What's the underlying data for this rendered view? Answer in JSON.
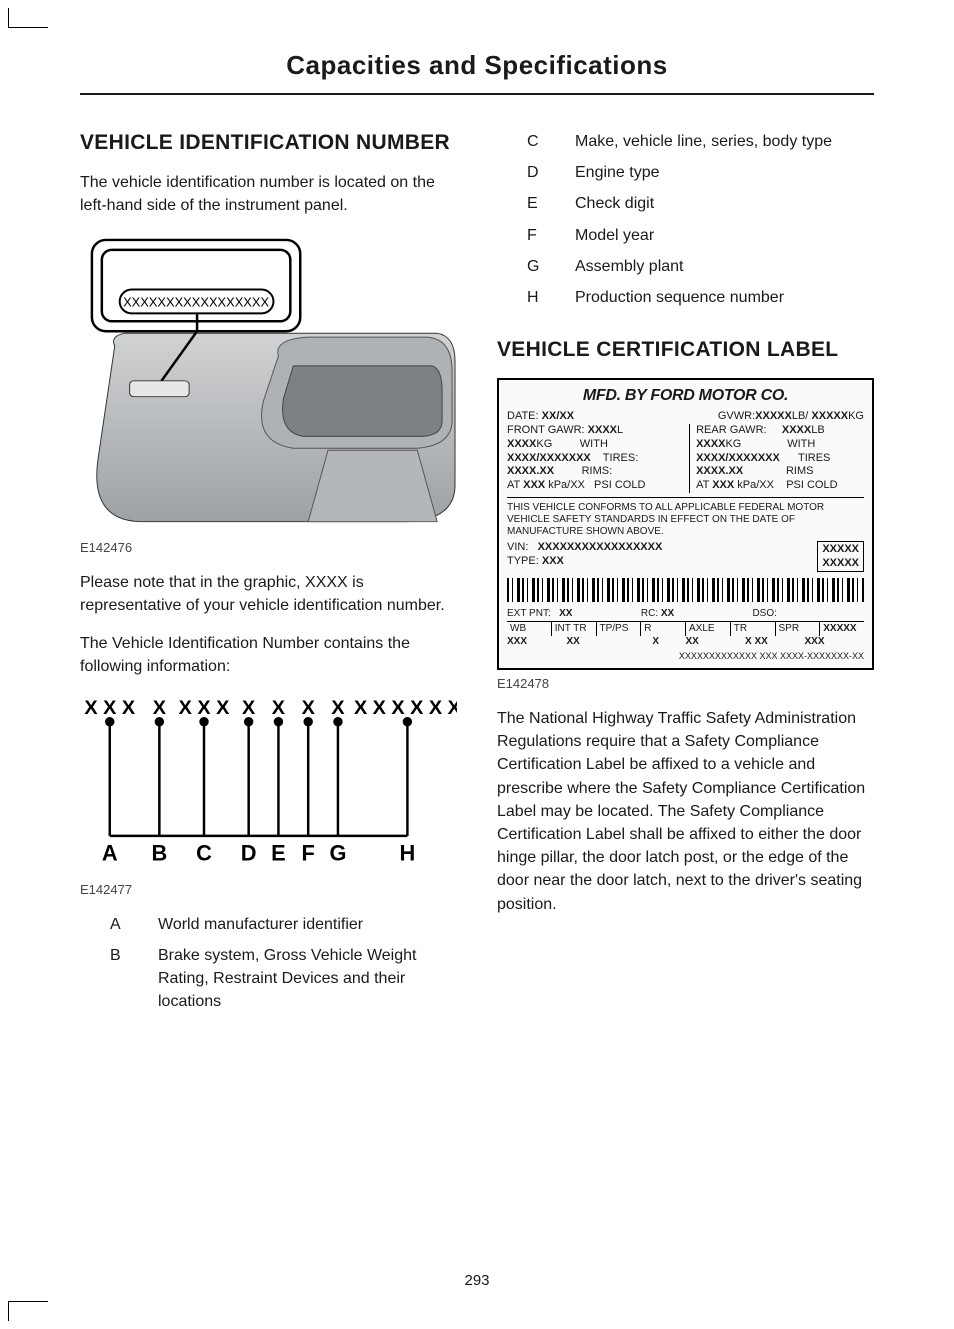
{
  "header": "Capacities and Specifications",
  "page_number": "293",
  "left": {
    "heading": "VEHICLE IDENTIFICATION NUMBER",
    "intro": "The vehicle identification number is located on the left-hand side of the instrument panel.",
    "fig1_caption": "E142476",
    "fig1_vin_placeholder": "XXXXXXXXXXXXXXXXX",
    "note": "Please note that in the graphic, XXXX is representative of your vehicle identification number.",
    "contains": "The Vehicle Identification Number contains the following information:",
    "fig2_caption": "E142477",
    "breakout": {
      "groups": [
        "X X X",
        "X",
        "X X X",
        "X",
        "X",
        "X",
        "X",
        "X X X X X X"
      ],
      "letters": [
        "A",
        "B",
        "C",
        "D",
        "E",
        "F",
        "G",
        "H"
      ]
    },
    "defs_ab": [
      {
        "letter": "A",
        "text": "World manufacturer identifier"
      },
      {
        "letter": "B",
        "text": "Brake system, Gross Vehicle Weight Rating, Restraint Devices and their locations"
      }
    ]
  },
  "right": {
    "defs_ch": [
      {
        "letter": "C",
        "text": "Make, vehicle line, series, body type"
      },
      {
        "letter": "D",
        "text": "Engine type"
      },
      {
        "letter": "E",
        "text": "Check digit"
      },
      {
        "letter": "F",
        "text": "Model year"
      },
      {
        "letter": "G",
        "text": "Assembly plant"
      },
      {
        "letter": "H",
        "text": "Production sequence number"
      }
    ],
    "heading": "VEHICLE CERTIFICATION LABEL",
    "cert": {
      "title": "MFD. BY FORD MOTOR CO.",
      "date_label": "DATE:",
      "date_val": "XX/XX",
      "gvwr_label": "GVWR:",
      "gvwr_val_lb": "XXXXX",
      "gvwr_unit_lb": "LB/ ",
      "gvwr_val_kg": "XXXXX",
      "gvwr_unit_kg": "KG",
      "front_gawr": "FRONT GAWR:",
      "rear_gawr": "REAR GAWR:",
      "xxxx_l": "XXXX",
      "unit_l": "L",
      "unit_lb": "LB",
      "xxxx_kg": "XXXX",
      "unit_kg": "KG",
      "with": "WITH",
      "tires_label": "TIRES:",
      "tires_val": "XXXX/XXXXXXX",
      "rims_label": "RIMS:",
      "rims_val": "XXXX.XX",
      "at": "AT",
      "psi": "XXX",
      "kpa": "kPa/XX",
      "psi_cold": "PSI COLD",
      "conform": "THIS VEHICLE CONFORMS TO ALL APPLICABLE FEDERAL MOTOR VEHICLE SAFETY STANDARDS IN EFFECT ON THE DATE OF MANUFACTURE SHOWN ABOVE.",
      "vin_label": "VIN:",
      "vin_val": "XXXXXXXXXXXXXXXXX",
      "type_label": "TYPE:",
      "type_val": "XXX",
      "xxxxx": "XXXXX",
      "ext_pnt": "EXT PNT:",
      "rc": "RC:",
      "dso": "DSO:",
      "wb": "WB",
      "int_tr": "INT TR",
      "tp_ps": "TP/PS",
      "r": "R",
      "axle": "AXLE",
      "tr": "TR",
      "spr": "SPR",
      "xx": "XX",
      "xxx": "XXX",
      "x": "X",
      "footer": "XXXXXXXXXXXXX XXX    XXXX-XXXXXXX-XX"
    },
    "fig3_caption": "E142478",
    "body": "The National Highway Traffic Safety Administration Regulations require that a Safety Compliance Certification Label be affixed to a vehicle and prescribe where the Safety Compliance Certification Label may be located. The Safety Compliance Certification Label shall be affixed to either the door hinge pillar, the door latch post, or the edge of the door near the door latch, next to the driver's seating position."
  },
  "colors": {
    "text": "#1a1a1a",
    "rule": "#1a1a1a",
    "gray_fill": "#bfc2c4",
    "gray_shadow": "#8f9497"
  }
}
